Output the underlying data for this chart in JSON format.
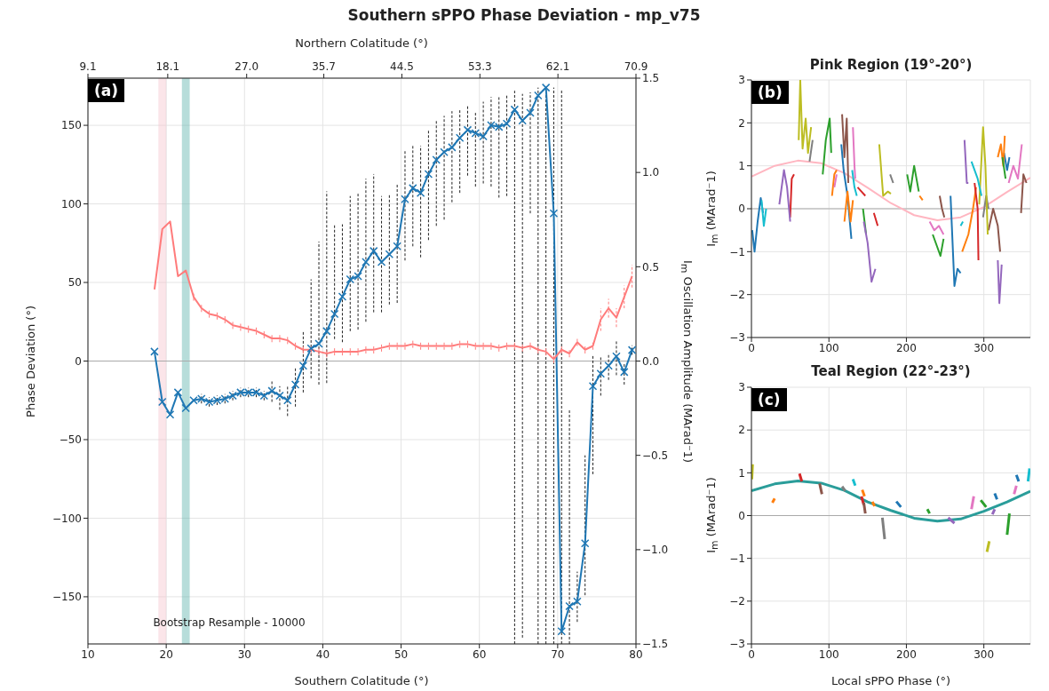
{
  "chart_data": [
    {
      "type": "line",
      "title": "Southern sPPO Phase Deviation - mp_v75",
      "xlabel": "Southern Colatitude (°)",
      "x2label": "Northern Colatitude (°)",
      "ylabel": "Phase Deviation (°)",
      "y2label": "I$_{m}$ Oscillation Amplitude (MArad⁻1)",
      "xlim": [
        10,
        80
      ],
      "xticks": [
        10,
        20,
        30,
        40,
        50,
        60,
        70,
        80
      ],
      "x2lim": [
        9.1,
        70.9
      ],
      "x2ticks": [
        9.1,
        18.1,
        {
          "value": 27,
          "label": "27.0"
        },
        35.7,
        44.5,
        53.3,
        62.1,
        70.9
      ],
      "ylim": [
        -180,
        180
      ],
      "yticks": [
        {
          "value": -150,
          "label": "−150"
        },
        {
          "value": -100,
          "label": "−100"
        },
        {
          "value": -50,
          "label": "−50"
        },
        0,
        50,
        100,
        150
      ],
      "y2lim": [
        -1.5,
        1.5
      ],
      "y2ticks": [
        {
          "value": -1.5,
          "label": "−1.5"
        },
        {
          "value": -1,
          "label": "−1.0"
        },
        {
          "value": -0.5,
          "label": "−0.5"
        },
        {
          "value": 0,
          "label": "0.0"
        },
        0.5,
        {
          "value": 1,
          "label": "1.0"
        },
        1.5
      ],
      "grid": true,
      "x": [
        18.5,
        19.5,
        20.5,
        21.5,
        22.5,
        23.5,
        24.5,
        25.5,
        26.5,
        27.5,
        28.5,
        29.5,
        30.5,
        31.5,
        32.5,
        33.5,
        34.5,
        35.5,
        36.5,
        37.5,
        38.5,
        39.5,
        40.5,
        41.5,
        42.5,
        43.5,
        44.5,
        45.5,
        46.5,
        47.5,
        48.5,
        49.5,
        50.5,
        51.5,
        52.5,
        53.5,
        54.5,
        55.5,
        56.5,
        57.5,
        58.5,
        59.5,
        60.5,
        61.5,
        62.5,
        63.5,
        64.5,
        65.5,
        66.5,
        67.5,
        68.5,
        69.5,
        70.5,
        71.5,
        72.5,
        73.5,
        74.5,
        75.5,
        76.5,
        77.5,
        78.5,
        79.5
      ],
      "series": [
        {
          "color": "#1f77b4",
          "marker": "cross",
          "values": [
            6,
            -26,
            -34,
            -20,
            -30,
            -25,
            -24,
            -26,
            -25,
            -24,
            -22,
            -20,
            -20,
            -20,
            -22,
            -19,
            -22,
            -25,
            -15,
            -3,
            8,
            11,
            19,
            30,
            41,
            52,
            54,
            63,
            70,
            63,
            68,
            73,
            103,
            110,
            107,
            119,
            128,
            133,
            136,
            142,
            147,
            145,
            143,
            150,
            149,
            151,
            160,
            153,
            158,
            169,
            174,
            94,
            -172,
            -156,
            -153,
            -116,
            -16,
            -8,
            -3,
            3,
            -7,
            7
          ],
          "errors": [
            null,
            null,
            null,
            null,
            null,
            null,
            3,
            3,
            3,
            3,
            3,
            3,
            3,
            3,
            3,
            [
              -26,
              -13
            ],
            [
              -31,
              -16
            ],
            [
              -35,
              -16
            ],
            [
              -29,
              -4
            ],
            [
              -20,
              19
            ],
            [
              -11,
              52
            ],
            [
              -15,
              76
            ],
            [
              -14,
              108
            ],
            [
              14,
              87
            ],
            [
              12,
              87
            ],
            [
              19,
              105
            ],
            [
              20,
              107
            ],
            [
              25,
              116
            ],
            [
              31,
              119
            ],
            [
              31,
              105
            ],
            [
              36,
              106
            ],
            [
              37,
              113
            ],
            [
              64,
              134
            ],
            [
              73,
              137
            ],
            [
              66,
              137
            ],
            [
              77,
              147
            ],
            [
              86,
              153
            ],
            [
              90,
              156
            ],
            [
              101,
              159
            ],
            [
              107,
              160
            ],
            [
              118,
              163
            ],
            [
              111,
              158
            ],
            [
              113,
              165
            ],
            [
              111,
              168
            ],
            [
              104,
              169
            ],
            [
              105,
              169
            ],
            [
              -180,
              172
            ],
            [
              -176,
              170
            ],
            [
              94,
              171
            ],
            [
              -180,
              174
            ],
            [
              -180,
              174
            ],
            [
              -180,
              174
            ],
            [
              -180,
              173
            ],
            [
              -180,
              -31
            ],
            [
              -166,
              -134
            ],
            [
              -149,
              -60
            ],
            [
              -72,
              4
            ],
            [
              -22,
              3
            ],
            [
              -12,
              5
            ],
            [
              -9,
              13
            ],
            [
              -15,
              -1
            ],
            3
          ]
        },
        {
          "color": "#ff7b7b",
          "axis": "y2",
          "marker": "none",
          "values": [
            0.38,
            0.7,
            0.74,
            0.45,
            0.48,
            0.34,
            0.28,
            0.25,
            0.24,
            0.22,
            0.19,
            0.18,
            0.17,
            0.16,
            0.14,
            0.12,
            0.12,
            0.11,
            0.08,
            0.06,
            0.06,
            0.05,
            0.04,
            0.05,
            0.05,
            0.05,
            0.05,
            0.06,
            0.06,
            0.07,
            0.08,
            0.08,
            0.08,
            0.09,
            0.08,
            0.08,
            0.08,
            0.08,
            0.08,
            0.09,
            0.09,
            0.08,
            0.08,
            0.08,
            0.07,
            0.08,
            0.08,
            0.07,
            0.08,
            0.06,
            0.05,
            0.01,
            0.06,
            0.04,
            0.1,
            0.06,
            0.08,
            0.22,
            0.28,
            0.23,
            0.34,
            0.45
          ],
          "errors": [
            null,
            null,
            null,
            null,
            null,
            0.02,
            0.02,
            0.02,
            0.02,
            0.02,
            0.02,
            0.02,
            0.02,
            0.02,
            0.02,
            0.02,
            0.02,
            0.02,
            0.02,
            0.02,
            0.02,
            0.02,
            0.02,
            0.02,
            0.02,
            0.02,
            0.02,
            0.02,
            0.02,
            0.02,
            0.02,
            0.02,
            0.02,
            0.02,
            0.02,
            0.02,
            0.02,
            0.02,
            0.02,
            0.02,
            0.02,
            0.02,
            0.02,
            0.02,
            0.02,
            0.02,
            0.02,
            0.02,
            0.02,
            0.02,
            0.02,
            0.02,
            0.02,
            0.02,
            0.02,
            0.02,
            0.02,
            0.06,
            0.05,
            0.05,
            0.06,
            0.06
          ]
        }
      ],
      "ref_lines": [
        {
          "axis": "y",
          "value": 0,
          "color": "#aaaaaa"
        }
      ],
      "bands": [
        {
          "axis": "x",
          "from": 19,
          "to": 20,
          "color": "#f7c6cf"
        },
        {
          "axis": "x",
          "from": 22,
          "to": 23,
          "color": "#5fb3ae"
        }
      ],
      "annotations": [
        "(a)",
        "Bootstrap Resample - 10000"
      ]
    },
    {
      "type": "line",
      "title": "Pink Region (19°-20°)",
      "ylabel": "I$_{m}$ (MArad⁻1)",
      "xlim": [
        0,
        360
      ],
      "xticks": [
        0,
        100,
        200,
        300
      ],
      "ylim": [
        -3,
        3
      ],
      "yticks": [
        {
          "value": -3,
          "label": "−3"
        },
        {
          "value": -2,
          "label": "−2"
        },
        {
          "value": -1,
          "label": "−1"
        },
        0,
        1,
        2,
        3
      ],
      "grid": true,
      "ref_lines": [
        {
          "axis": "y",
          "value": 0,
          "color": "#aaaaaa"
        }
      ],
      "annotations": [
        "(b)"
      ],
      "series": [
        {
          "color": "#ffb6c1",
          "x": [
            0,
            30,
            60,
            90,
            120,
            150,
            180,
            210,
            240,
            270,
            300,
            330,
            360
          ],
          "values": [
            0.75,
            1.0,
            1.12,
            1.06,
            0.83,
            0.49,
            0.13,
            -0.15,
            -0.27,
            -0.2,
            0.04,
            0.39,
            0.72
          ]
        },
        {
          "color": "#1f77b4",
          "x": [
            1,
            4,
            8,
            12,
            15,
            60,
            116,
            119,
            124,
            129,
            200,
            257,
            262,
            266,
            270,
            300,
            326,
            330,
            333
          ],
          "values": [
            -0.5,
            -1.0,
            -0.3,
            0.25,
            -0.1,
            null,
            1.5,
            0.9,
            0.3,
            -0.7,
            null,
            0.3,
            -1.8,
            -1.4,
            -1.5,
            null,
            1.3,
            0.9,
            1.2
          ]
        },
        {
          "color": "#ff7f0e",
          "x": [
            104,
            107,
            110,
            115,
            120,
            124,
            128,
            131,
            180,
            217,
            221,
            250,
            272,
            280,
            286,
            290,
            300,
            318,
            322,
            325,
            327
          ],
          "values": [
            0.3,
            0.8,
            0.9,
            null,
            -0.3,
            0.4,
            -0.3,
            0.2,
            null,
            0.3,
            0.2,
            null,
            -1.0,
            -0.6,
            0,
            0.5,
            null,
            1.2,
            1.5,
            1.0,
            1.7
          ]
        },
        {
          "color": "#2ca02c",
          "x": [
            92,
            96,
            101,
            103,
            120,
            144,
            148,
            180,
            201,
            205,
            210,
            216,
            225,
            234,
            240,
            244,
            248,
            290,
            324,
            328
          ],
          "values": [
            0.8,
            1.6,
            2.1,
            1.3,
            null,
            0,
            -0.6,
            null,
            0.8,
            0.4,
            1.0,
            0.4,
            null,
            -0.6,
            -0.9,
            -1.1,
            -0.7,
            null,
            1.2,
            0.7
          ]
        },
        {
          "color": "#d62728",
          "x": [
            50,
            52,
            55,
            100,
            158,
            163,
            220,
            288,
            292,
            293
          ],
          "values": [
            -0.2,
            0.7,
            0.8,
            null,
            -0.1,
            -0.4,
            null,
            0.6,
            0,
            -1.2
          ]
        },
        {
          "color": "#9467bd",
          "x": [
            36,
            42,
            46,
            50,
            100,
            145,
            150,
            155,
            160,
            220,
            275,
            278,
            280,
            300,
            318,
            320,
            323
          ],
          "values": [
            0.1,
            0.9,
            0.5,
            -0.3,
            null,
            -0.3,
            -0.8,
            -1.7,
            -1.4,
            null,
            1.6,
            0.6,
            0.6,
            null,
            -1.2,
            -2.2,
            -1.3
          ]
        },
        {
          "color": "#8c564b",
          "x": [
            117,
            120,
            123,
            125,
            180,
            243,
            246,
            249,
            280,
            306,
            312,
            318,
            321,
            335,
            348,
            351,
            355
          ],
          "values": [
            2.2,
            1.2,
            2.1,
            0.6,
            null,
            0.3,
            0,
            -0.2,
            null,
            -0.5,
            0,
            -0.4,
            -1.0,
            null,
            -0.1,
            0.8,
            0.6
          ]
        },
        {
          "color": "#e377c2",
          "x": [
            107,
            110,
            120,
            131,
            133,
            134,
            180,
            230,
            236,
            242,
            248,
            290,
            332,
            338,
            344,
            349
          ],
          "values": [
            0.5,
            0.8,
            null,
            1.9,
            1.0,
            0.7,
            null,
            -0.3,
            -0.5,
            -0.4,
            -0.6,
            null,
            0.6,
            1.0,
            0.7,
            1.5
          ]
        },
        {
          "color": "#7f7f7f",
          "x": [
            75,
            79,
            130,
            179,
            183,
            240,
            299,
            303,
            306
          ],
          "values": [
            1.1,
            1.6,
            null,
            0.8,
            0.6,
            null,
            -0.2,
            0.3,
            0
          ]
        },
        {
          "color": "#bcbd22",
          "x": [
            61,
            63,
            66,
            70,
            73,
            77,
            120,
            165,
            170,
            176,
            180,
            240,
            294,
            299,
            302,
            305
          ],
          "values": [
            1.6,
            3.0,
            1.4,
            2.1,
            1.3,
            1.9,
            null,
            1.5,
            0.3,
            0.4,
            0.35,
            null,
            0.1,
            1.9,
            1.0,
            -0.6
          ]
        },
        {
          "color": "#17becf",
          "x": [
            13,
            16,
            19,
            70,
            130,
            133,
            136,
            200,
            270,
            273,
            278,
            284,
            292,
            297
          ],
          "values": [
            0.2,
            -0.4,
            0,
            null,
            0.9,
            0.5,
            0.3,
            null,
            -0.4,
            -0.3,
            null,
            1.1,
            0.7,
            0.3
          ]
        },
        {
          "color": "#d62728",
          "x": [
            137,
            142,
            147
          ],
          "values": [
            0.5,
            0.4,
            0.3
          ]
        }
      ]
    },
    {
      "type": "line",
      "title": "Teal Region (22°-23°)",
      "xlabel": "Local sPPO Phase (°)",
      "ylabel": "I$_{m}$ (MArad⁻1)",
      "xlim": [
        0,
        360
      ],
      "xticks": [
        0,
        100,
        200,
        300
      ],
      "ylim": [
        -3,
        3
      ],
      "yticks": [
        {
          "value": -3,
          "label": "−3"
        },
        {
          "value": -2,
          "label": "−2"
        },
        {
          "value": -1,
          "label": "−1"
        },
        0,
        1,
        2,
        3
      ],
      "grid": true,
      "ref_lines": [
        {
          "axis": "y",
          "value": 0,
          "color": "#aaaaaa"
        }
      ],
      "annotations": [
        "(c)"
      ],
      "series": [
        {
          "color": "#2a9d9a",
          "x": [
            0,
            30,
            60,
            90,
            120,
            150,
            180,
            210,
            240,
            270,
            300,
            330,
            360
          ],
          "values": [
            0.58,
            0.74,
            0.81,
            0.76,
            0.59,
            0.32,
            0.12,
            -0.06,
            -0.13,
            -0.08,
            0.1,
            0.32,
            0.57
          ]
        },
        {
          "color": "#1f77b4",
          "x": [
            187,
            193,
            250,
            314,
            317,
            330,
            342,
            345
          ],
          "values": [
            0.33,
            0.2,
            null,
            0.52,
            0.38,
            null,
            0.95,
            0.8
          ]
        },
        {
          "color": "#ff7f0e",
          "x": [
            27,
            30,
            80,
            143,
            146,
            150,
            156,
            159
          ],
          "values": [
            0.3,
            0.4,
            null,
            0.6,
            0.45,
            null,
            0.32,
            0.22
          ]
        },
        {
          "color": "#2ca02c",
          "x": [
            227,
            230,
            260,
            296,
            303,
            315,
            330,
            333
          ],
          "values": [
            0.15,
            0.05,
            null,
            0.36,
            0.2,
            null,
            -0.45,
            0.05
          ]
        },
        {
          "color": "#d62728",
          "x": [
            62,
            65,
            100,
            142,
            145
          ],
          "values": [
            0.98,
            0.8,
            null,
            0.45,
            0.25
          ]
        },
        {
          "color": "#9467bd",
          "x": [
            254,
            262,
            280,
            311,
            314
          ],
          "values": [
            -0.05,
            -0.18,
            null,
            0.03,
            0.15
          ]
        },
        {
          "color": "#8c564b",
          "x": [
            88,
            91,
            120,
            145,
            147
          ],
          "values": [
            0.75,
            0.5,
            null,
            0.3,
            0.05
          ]
        },
        {
          "color": "#e377c2",
          "x": [
            284,
            287,
            300,
            339,
            342
          ],
          "values": [
            0.15,
            0.45,
            null,
            0.5,
            0.7
          ]
        },
        {
          "color": "#7f7f7f",
          "x": [
            117,
            121,
            140,
            169,
            172
          ],
          "values": [
            0.68,
            0.58,
            null,
            -0.05,
            -0.55
          ]
        },
        {
          "color": "#bcbd22",
          "x": [
            0.5,
            1.5,
            150,
            304,
            307
          ],
          "values": [
            0.85,
            1.2,
            null,
            -0.85,
            -0.6
          ]
        },
        {
          "color": "#17becf",
          "x": [
            131,
            134,
            250,
            357,
            359
          ],
          "values": [
            0.85,
            0.7,
            null,
            0.8,
            1.1
          ]
        }
      ]
    }
  ]
}
